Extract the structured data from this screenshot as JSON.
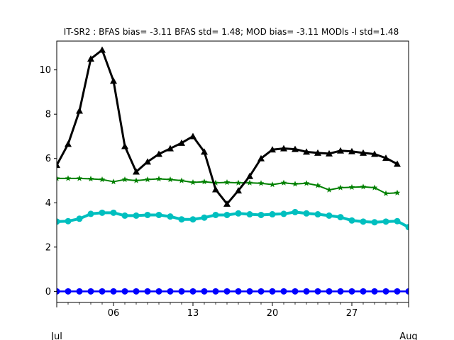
{
  "chart_data": {
    "type": "line",
    "title": "IT-SR2   : BFAS bias= -3.11 BFAS std= 1.48; MOD bias= -3.11 MODls -l std=1.48",
    "xlabel": "",
    "ylabel": "",
    "x_start": "2024-07-01",
    "xlim": [
      "2024-07-01",
      "2024-08-01"
    ],
    "ylim": [
      -0.5,
      11.3
    ],
    "x_major_ticks": [
      {
        "date": "2024-07-06",
        "label": "06"
      },
      {
        "date": "2024-07-13",
        "label": "13"
      },
      {
        "date": "2024-07-20",
        "label": "20"
      },
      {
        "date": "2024-07-27",
        "label": "27"
      }
    ],
    "x_month_ticks": [
      {
        "date": "2024-07-01",
        "label": "Jul"
      },
      {
        "date": "2024-08-01",
        "label": "Aug"
      }
    ],
    "y_ticks": [
      0,
      2,
      4,
      6,
      8,
      10
    ],
    "grid": false,
    "series": [
      {
        "color": "#0000ff",
        "marker": "circle",
        "stroke_width": 2.5,
        "x": [
          "2024-07-01",
          "2024-07-02",
          "2024-07-03",
          "2024-07-04",
          "2024-07-05",
          "2024-07-06",
          "2024-07-07",
          "2024-07-08",
          "2024-07-09",
          "2024-07-10",
          "2024-07-11",
          "2024-07-12",
          "2024-07-13",
          "2024-07-14",
          "2024-07-15",
          "2024-07-16",
          "2024-07-17",
          "2024-07-18",
          "2024-07-19",
          "2024-07-20",
          "2024-07-21",
          "2024-07-22",
          "2024-07-23",
          "2024-07-24",
          "2024-07-25",
          "2024-07-26",
          "2024-07-27",
          "2024-07-28",
          "2024-07-29",
          "2024-07-30",
          "2024-07-31",
          "2024-08-01"
        ],
        "values": [
          0,
          0,
          0,
          0,
          0,
          0,
          0,
          0,
          0,
          0,
          0,
          0,
          0,
          0,
          0,
          0,
          0,
          0,
          0,
          0,
          0,
          0,
          0,
          0,
          0,
          0,
          0,
          0,
          0,
          0,
          0,
          0
        ]
      },
      {
        "color": "#00bfbf",
        "marker": "circle",
        "stroke_width": 4,
        "x": [
          "2024-07-01",
          "2024-07-02",
          "2024-07-03",
          "2024-07-04",
          "2024-07-05",
          "2024-07-06",
          "2024-07-07",
          "2024-07-08",
          "2024-07-09",
          "2024-07-10",
          "2024-07-11",
          "2024-07-12",
          "2024-07-13",
          "2024-07-14",
          "2024-07-15",
          "2024-07-16",
          "2024-07-17",
          "2024-07-18",
          "2024-07-19",
          "2024-07-20",
          "2024-07-21",
          "2024-07-22",
          "2024-07-23",
          "2024-07-24",
          "2024-07-25",
          "2024-07-26",
          "2024-07-27",
          "2024-07-28",
          "2024-07-29",
          "2024-07-30",
          "2024-07-31",
          "2024-08-01"
        ],
        "values": [
          3.15,
          3.17,
          3.28,
          3.5,
          3.55,
          3.55,
          3.42,
          3.42,
          3.45,
          3.45,
          3.38,
          3.25,
          3.25,
          3.33,
          3.45,
          3.45,
          3.52,
          3.48,
          3.45,
          3.48,
          3.5,
          3.58,
          3.52,
          3.48,
          3.42,
          3.35,
          3.2,
          3.15,
          3.12,
          3.15,
          3.17,
          2.9
        ]
      },
      {
        "color": "#008000",
        "marker": "star",
        "stroke_width": 2,
        "x": [
          "2024-07-01",
          "2024-07-02",
          "2024-07-03",
          "2024-07-04",
          "2024-07-05",
          "2024-07-06",
          "2024-07-07",
          "2024-07-08",
          "2024-07-09",
          "2024-07-10",
          "2024-07-11",
          "2024-07-12",
          "2024-07-13",
          "2024-07-14",
          "2024-07-15",
          "2024-07-16",
          "2024-07-17",
          "2024-07-18",
          "2024-07-19",
          "2024-07-20",
          "2024-07-21",
          "2024-07-22",
          "2024-07-23",
          "2024-07-24",
          "2024-07-25",
          "2024-07-26",
          "2024-07-27",
          "2024-07-28",
          "2024-07-29",
          "2024-07-30",
          "2024-07-31"
        ],
        "values": [
          5.1,
          5.1,
          5.1,
          5.08,
          5.05,
          4.95,
          5.05,
          5.0,
          5.05,
          5.08,
          5.05,
          5.0,
          4.92,
          4.95,
          4.9,
          4.92,
          4.9,
          4.9,
          4.88,
          4.82,
          4.9,
          4.85,
          4.88,
          4.78,
          4.58,
          4.68,
          4.7,
          4.72,
          4.68,
          4.42,
          4.45
        ]
      },
      {
        "color": "#000000",
        "marker": "triangle",
        "stroke_width": 3,
        "x": [
          "2024-07-01",
          "2024-07-02",
          "2024-07-03",
          "2024-07-04",
          "2024-07-05",
          "2024-07-06",
          "2024-07-07",
          "2024-07-08",
          "2024-07-09",
          "2024-07-10",
          "2024-07-11",
          "2024-07-12",
          "2024-07-13",
          "2024-07-14",
          "2024-07-15",
          "2024-07-16",
          "2024-07-17",
          "2024-07-18",
          "2024-07-19",
          "2024-07-20",
          "2024-07-21",
          "2024-07-22",
          "2024-07-23",
          "2024-07-24",
          "2024-07-25",
          "2024-07-26",
          "2024-07-27",
          "2024-07-28",
          "2024-07-29",
          "2024-07-30",
          "2024-07-31"
        ],
        "values": [
          5.7,
          6.65,
          8.15,
          10.5,
          10.9,
          9.5,
          6.55,
          5.4,
          5.85,
          6.2,
          6.45,
          6.7,
          7.0,
          6.3,
          4.6,
          3.95,
          4.55,
          5.2,
          6.0,
          6.4,
          6.45,
          6.42,
          6.3,
          6.25,
          6.22,
          6.35,
          6.32,
          6.25,
          6.2,
          6.02,
          5.75
        ]
      }
    ]
  }
}
